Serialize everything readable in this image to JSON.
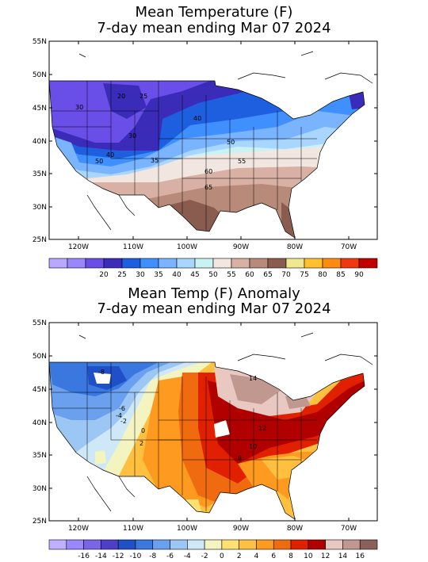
{
  "panels": [
    {
      "title_line1": "Mean Temperature (F)",
      "title_line2": "7-day mean ending Mar 07 2024",
      "lat_labels": [
        "55N",
        "50N",
        "45N",
        "40N",
        "35N",
        "30N",
        "25N"
      ],
      "lon_labels": [
        "120W",
        "110W",
        "100W",
        "90W",
        "80W",
        "70W"
      ],
      "legend_colors": [
        "#b8a8ff",
        "#9a86ff",
        "#6a4ee8",
        "#3a2cb8",
        "#1e5fe0",
        "#3f8fff",
        "#7ab4ff",
        "#a9d6ff",
        "#c9f3f3",
        "#f2e6e0",
        "#d8b0a4",
        "#b88a7a",
        "#8a5c50",
        "#f0e890",
        "#ffc030",
        "#ff8a10",
        "#f03810",
        "#c00000"
      ],
      "legend_labels": [
        "20",
        "25",
        "30",
        "35",
        "40",
        "45",
        "50",
        "55",
        "60",
        "65",
        "70",
        "75",
        "80",
        "85",
        "90"
      ],
      "contour_labels": [
        "20",
        "25",
        "30",
        "30",
        "40",
        "40",
        "50",
        "50",
        "35",
        "55",
        "60",
        "65"
      ]
    },
    {
      "title_line1": "Mean Temp (F) Anomaly",
      "title_line2": "7-day mean ending Mar 07 2024",
      "lat_labels": [
        "55N",
        "50N",
        "45N",
        "40N",
        "35N",
        "30N",
        "25N"
      ],
      "lon_labels": [
        "120W",
        "110W",
        "100W",
        "90W",
        "80W",
        "70W"
      ],
      "legend_colors": [
        "#c0b0ff",
        "#9a86ff",
        "#7a64e8",
        "#4f3fc8",
        "#2050c8",
        "#3a78e0",
        "#6aa0ee",
        "#9cc6f4",
        "#cfe8f8",
        "#f4f4c0",
        "#ffe070",
        "#ffc040",
        "#ff9a20",
        "#f06a10",
        "#e02000",
        "#b00000",
        "#e8c8c0",
        "#c09890",
        "#8a6058"
      ],
      "legend_labels": [
        "-16",
        "-14",
        "-12",
        "-10",
        "-8",
        "-6",
        "-4",
        "-2",
        "0",
        "2",
        "4",
        "6",
        "8",
        "10",
        "12",
        "14",
        "16"
      ],
      "contour_labels": [
        "-8",
        "-6",
        "-4",
        "-2",
        "0",
        "2",
        "14",
        "12",
        "10",
        "8"
      ]
    }
  ]
}
